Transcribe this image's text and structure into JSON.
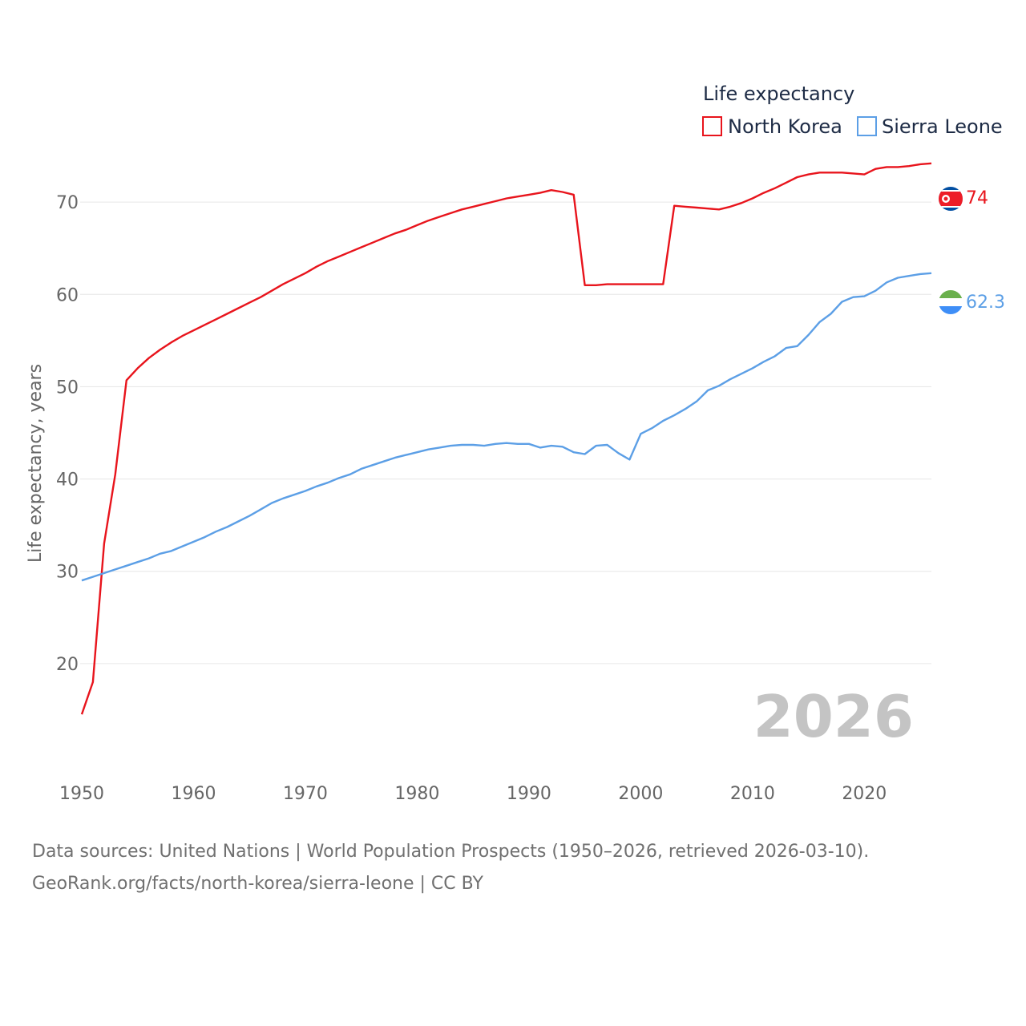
{
  "chart_data": {
    "type": "line",
    "legend": {
      "title": "Life expectancy",
      "position": "top-right"
    },
    "ylabel": "Life expectancy, years",
    "xlabel": "",
    "xlim": [
      1950,
      2026
    ],
    "ylim": [
      12,
      78
    ],
    "y_ticks": [
      "20",
      "30",
      "40",
      "50",
      "60",
      "70"
    ],
    "x_ticks": [
      "1950",
      "1960",
      "1970",
      "1980",
      "1990",
      "2000",
      "2010",
      "2020"
    ],
    "year_watermark": "2026",
    "grid": true,
    "series": [
      {
        "name": "North Korea",
        "color": "#e8141c",
        "end_label": "74",
        "flag": "north-korea-flag-icon",
        "x": [
          1950,
          1951,
          1952,
          1953,
          1954,
          1955,
          1956,
          1957,
          1958,
          1959,
          1960,
          1961,
          1962,
          1963,
          1964,
          1965,
          1966,
          1967,
          1968,
          1969,
          1970,
          1971,
          1972,
          1973,
          1974,
          1975,
          1976,
          1977,
          1978,
          1979,
          1980,
          1981,
          1982,
          1983,
          1984,
          1985,
          1986,
          1987,
          1988,
          1989,
          1990,
          1991,
          1992,
          1993,
          1994,
          1995,
          1996,
          1997,
          1998,
          1999,
          2000,
          2001,
          2002,
          2003,
          2004,
          2005,
          2006,
          2007,
          2008,
          2009,
          2010,
          2011,
          2012,
          2013,
          2014,
          2015,
          2016,
          2017,
          2018,
          2019,
          2020,
          2021,
          2022,
          2023,
          2024,
          2025,
          2026
        ],
        "values": [
          14.5,
          18,
          33,
          40.5,
          50.7,
          52,
          53.1,
          54,
          54.8,
          55.5,
          56.1,
          56.7,
          57.3,
          57.9,
          58.5,
          59.1,
          59.7,
          60.4,
          61.1,
          61.7,
          62.3,
          63,
          63.6,
          64.1,
          64.6,
          65.1,
          65.6,
          66.1,
          66.6,
          67,
          67.5,
          68,
          68.4,
          68.8,
          69.2,
          69.5,
          69.8,
          70.1,
          70.4,
          70.6,
          70.8,
          71,
          71.3,
          71.1,
          70.8,
          61,
          61,
          61.1,
          61.1,
          61.1,
          61.1,
          61.1,
          61.1,
          69.6,
          69.5,
          69.4,
          69.3,
          69.2,
          69.5,
          69.9,
          70.4,
          71,
          71.5,
          72.1,
          72.7,
          73,
          73.2,
          73.2,
          73.2,
          73.1,
          73,
          73.6,
          73.8,
          73.8,
          73.9,
          74.1,
          74.2
        ]
      },
      {
        "name": "Sierra Leone",
        "color": "#5c9fe6",
        "end_label": "62.3",
        "flag": "sierra-leone-flag-icon",
        "x": [
          1950,
          1951,
          1952,
          1953,
          1954,
          1955,
          1956,
          1957,
          1958,
          1959,
          1960,
          1961,
          1962,
          1963,
          1964,
          1965,
          1966,
          1967,
          1968,
          1969,
          1970,
          1971,
          1972,
          1973,
          1974,
          1975,
          1976,
          1977,
          1978,
          1979,
          1980,
          1981,
          1982,
          1983,
          1984,
          1985,
          1986,
          1987,
          1988,
          1989,
          1990,
          1991,
          1992,
          1993,
          1994,
          1995,
          1996,
          1997,
          1998,
          1999,
          2000,
          2001,
          2002,
          2003,
          2004,
          2005,
          2006,
          2007,
          2008,
          2009,
          2010,
          2011,
          2012,
          2013,
          2014,
          2015,
          2016,
          2017,
          2018,
          2019,
          2020,
          2021,
          2022,
          2023,
          2024,
          2025,
          2026
        ],
        "values": [
          29,
          29.4,
          29.8,
          30.2,
          30.6,
          31,
          31.4,
          31.9,
          32.2,
          32.7,
          33.2,
          33.7,
          34.3,
          34.8,
          35.4,
          36,
          36.7,
          37.4,
          37.9,
          38.3,
          38.7,
          39.2,
          39.6,
          40.1,
          40.5,
          41.1,
          41.5,
          41.9,
          42.3,
          42.6,
          42.9,
          43.2,
          43.4,
          43.6,
          43.7,
          43.7,
          43.6,
          43.8,
          43.9,
          43.8,
          43.8,
          43.4,
          43.6,
          43.5,
          42.9,
          42.7,
          43.6,
          43.7,
          42.8,
          42.1,
          44.9,
          45.5,
          46.3,
          46.9,
          47.6,
          48.4,
          49.6,
          50.1,
          50.8,
          51.4,
          52,
          52.7,
          53.3,
          54.2,
          54.4,
          55.6,
          57,
          57.9,
          59.2,
          59.7,
          59.8,
          60.4,
          61.3,
          61.8,
          62,
          62.2,
          62.3
        ]
      }
    ]
  },
  "footer": {
    "sources": "Data sources: United Nations | World Population Prospects (1950–2026, retrieved 2026-03-10).",
    "attribution": "GeoRank.org/facts/north-korea/sierra-leone | CC BY"
  }
}
